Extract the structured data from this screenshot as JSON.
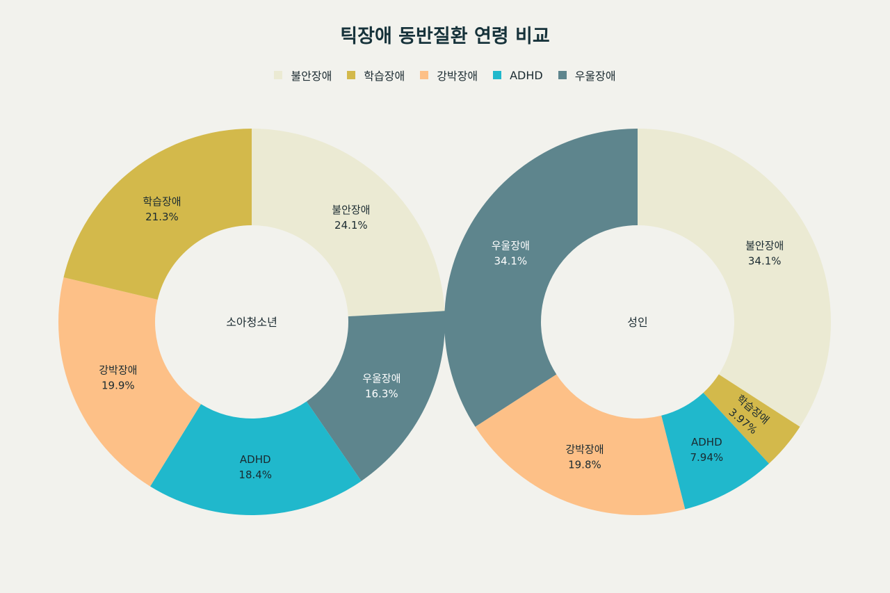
{
  "chart_data": {
    "type": "pie",
    "title": "틱장애 동반질환 연령 비교",
    "legend_placement": "top",
    "categories": [
      "불안장애",
      "학습장애",
      "강박장애",
      "ADHD",
      "우울장애"
    ],
    "colors": {
      "불안장애": "#ebead3",
      "학습장애": "#d3b94b",
      "강박장애": "#fdc087",
      "ADHD": "#20b8cc",
      "우울장애": "#5e858d"
    },
    "label_colors": {
      "불안장애": "#1a2a30",
      "학습장애": "#1a2a30",
      "강박장애": "#1a2a30",
      "ADHD": "#1a2a30",
      "우울장애": "#ffffff"
    },
    "charts": [
      {
        "name": "소아청소년",
        "slices": [
          {
            "label": "불안장애",
            "value": 24.1,
            "text": "24.1%"
          },
          {
            "label": "우울장애",
            "value": 16.3,
            "text": "16.3%"
          },
          {
            "label": "ADHD",
            "value": 18.4,
            "text": "18.4%"
          },
          {
            "label": "강박장애",
            "value": 19.9,
            "text": "19.9%"
          },
          {
            "label": "학습장애",
            "value": 21.3,
            "text": "21.3%"
          }
        ]
      },
      {
        "name": "성인",
        "slices": [
          {
            "label": "불안장애",
            "value": 34.1,
            "text": "34.1%"
          },
          {
            "label": "학습장애",
            "value": 3.97,
            "text": "3.97%"
          },
          {
            "label": "ADHD",
            "value": 7.94,
            "text": "7.94%"
          },
          {
            "label": "강박장애",
            "value": 19.8,
            "text": "19.8%"
          },
          {
            "label": "우울장애",
            "value": 34.1,
            "text": "34.1%"
          }
        ]
      }
    ]
  }
}
